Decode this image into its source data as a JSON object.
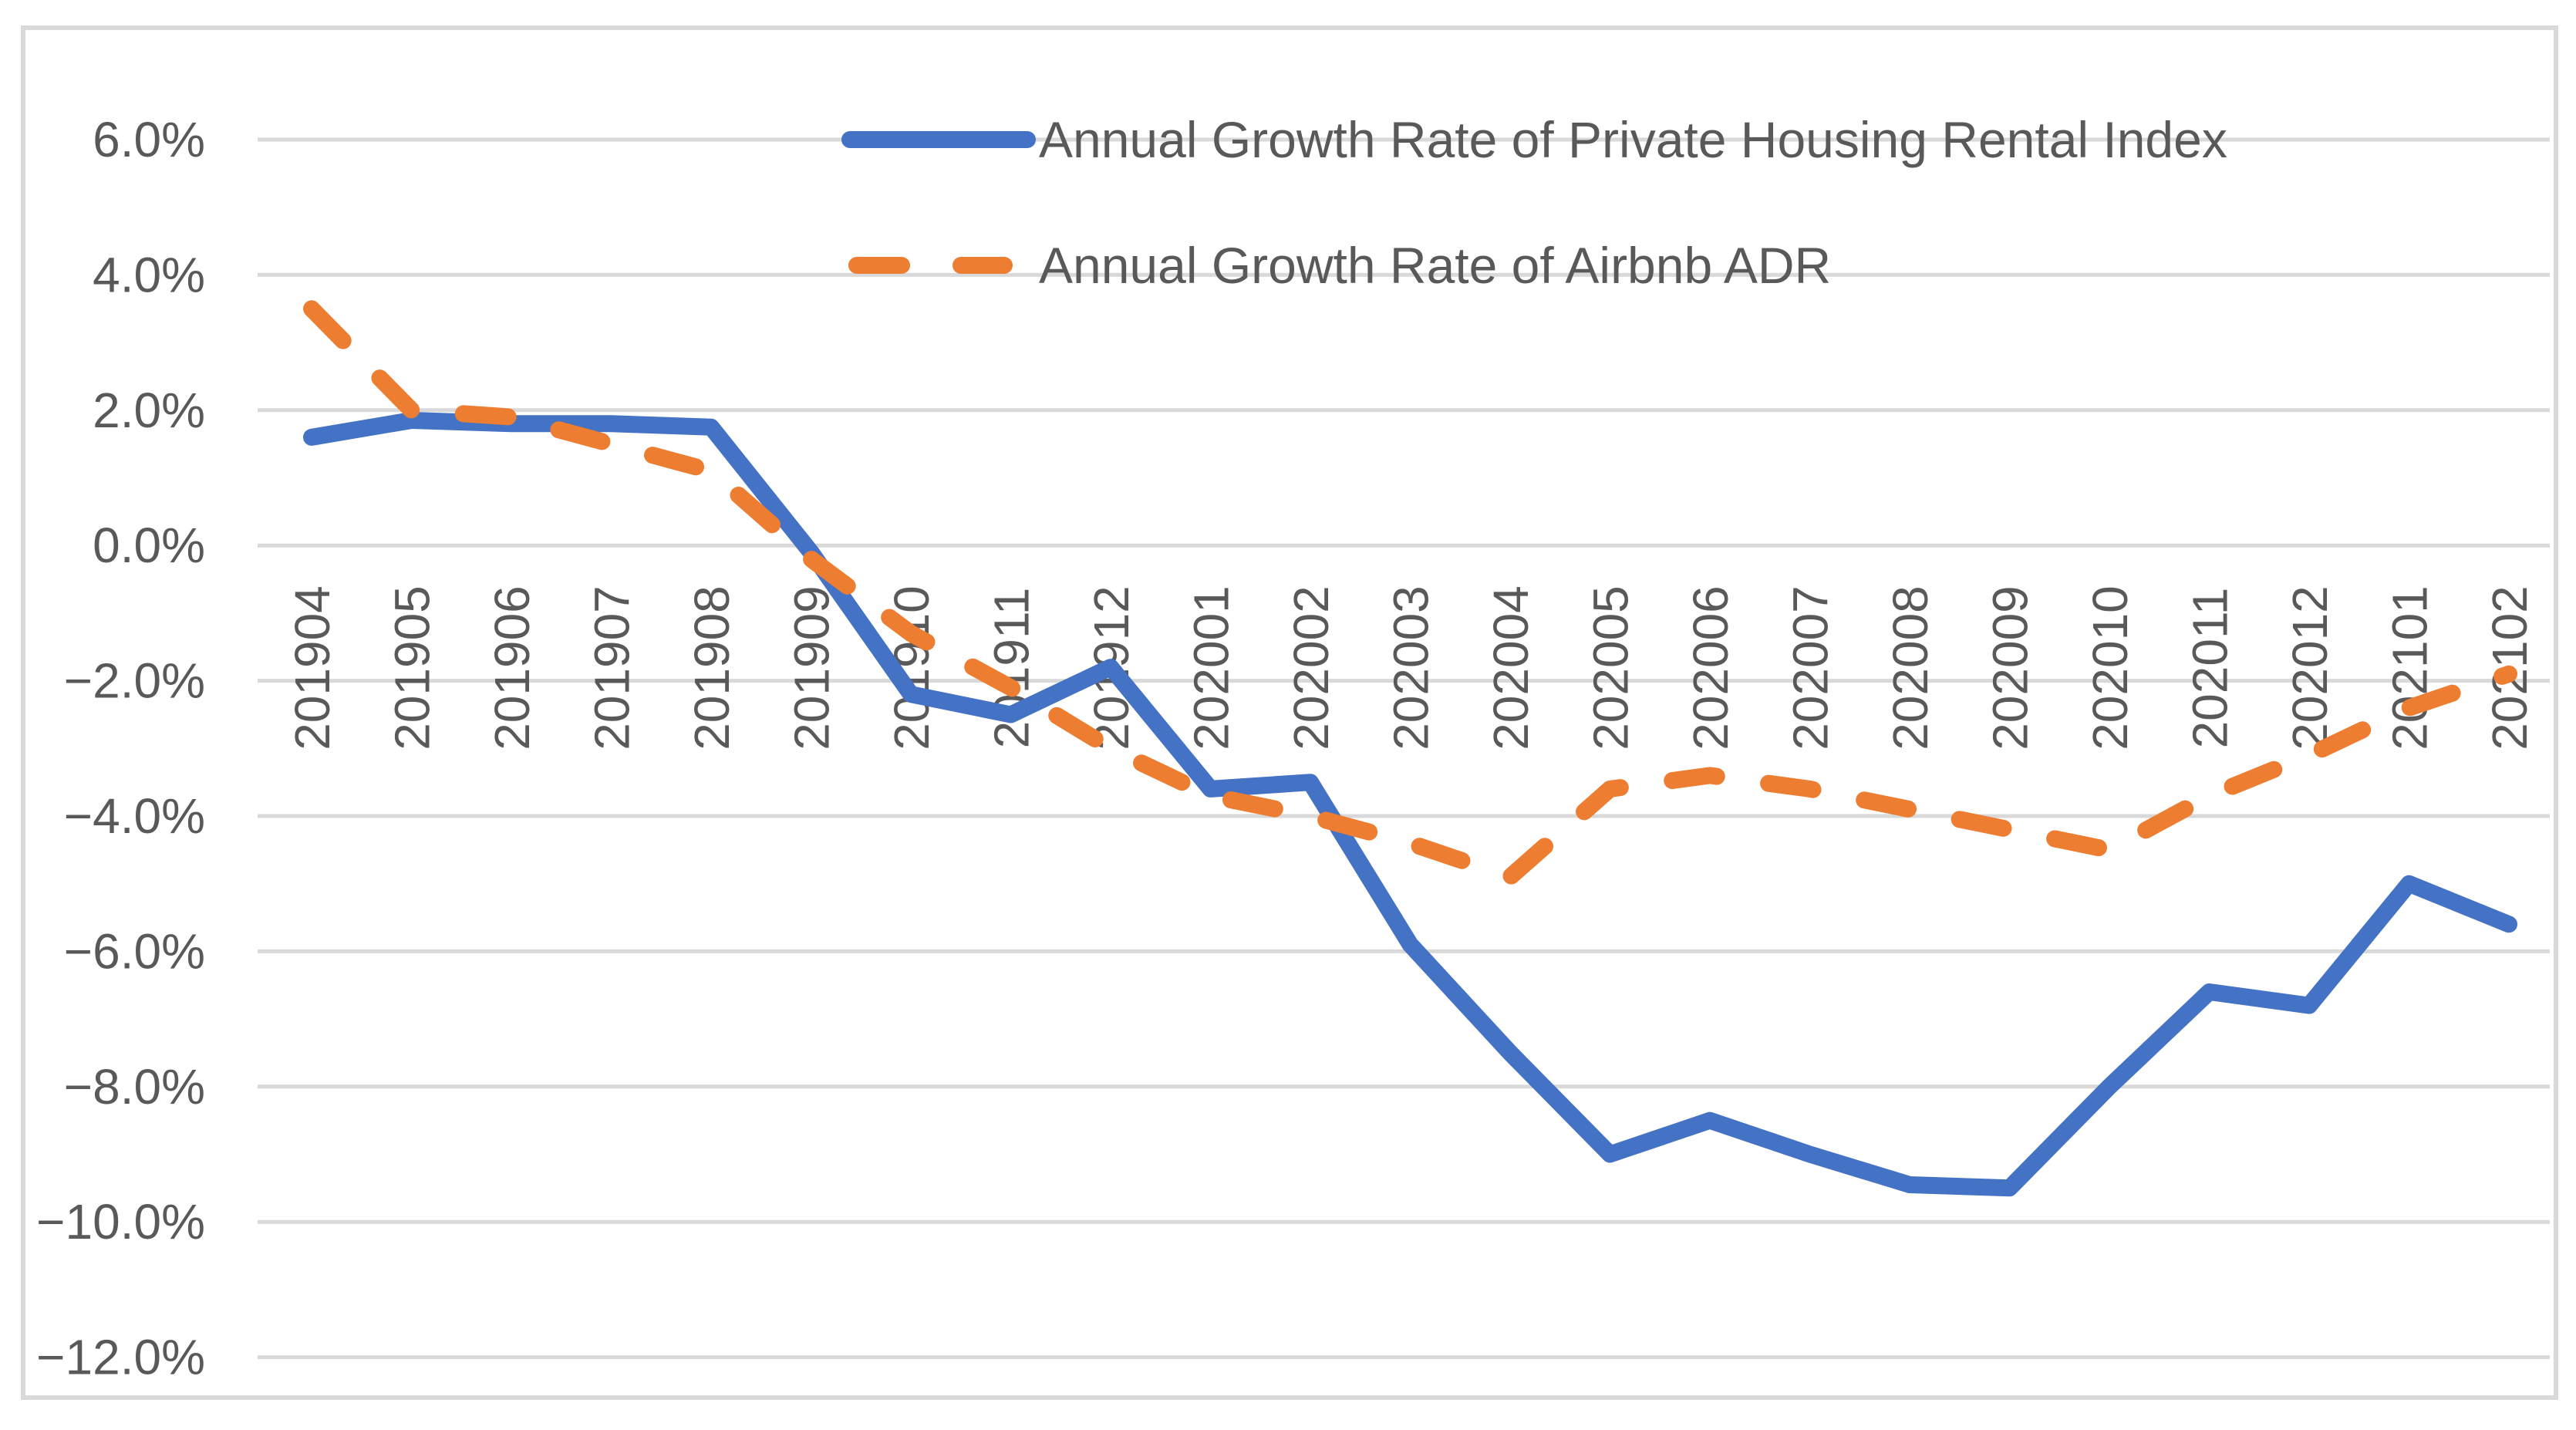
{
  "chart_data": {
    "type": "line",
    "title": "",
    "xlabel": "",
    "ylabel": "",
    "categories": [
      "201904",
      "201905",
      "201906",
      "201907",
      "201908",
      "201909",
      "201910",
      "201911",
      "201912",
      "202001",
      "202002",
      "202003",
      "202004",
      "202005",
      "202006",
      "202007",
      "202008",
      "202009",
      "202010",
      "202011",
      "202012",
      "202101",
      "202102"
    ],
    "series": [
      {
        "name": "Annual Growth Rate of Private Housing Rental Index",
        "color": "#4472C4",
        "line_style": "solid",
        "values": [
          1.6,
          1.85,
          1.8,
          1.8,
          1.75,
          -0.1,
          -2.2,
          -2.5,
          -1.8,
          -3.6,
          -3.5,
          -5.9,
          -7.5,
          -9.0,
          -8.5,
          -9.0,
          -9.45,
          -9.5,
          -8.0,
          -6.6,
          -6.8,
          -5.0,
          -5.6
        ]
      },
      {
        "name": "Annual Growth Rate of Airbnb ADR",
        "color": "#ED7D31",
        "line_style": "dashed",
        "values": [
          3.5,
          2.0,
          1.9,
          1.5,
          1.1,
          -0.2,
          -1.3,
          -2.1,
          -3.0,
          -3.7,
          -4.0,
          -4.4,
          -4.9,
          -3.6,
          -3.4,
          -3.6,
          -3.9,
          -4.2,
          -4.5,
          -3.7,
          -3.1,
          -2.4,
          -1.9
        ]
      }
    ],
    "ylim": [
      -12,
      6
    ],
    "yticks": [
      6,
      4,
      2,
      0,
      -2,
      -4,
      -6,
      -8,
      -10,
      -12
    ],
    "ytick_labels": [
      "6.0%",
      "4.0%",
      "2.0%",
      "0.0%",
      "−2.0%",
      "−4.0%",
      "−6.0%",
      "−8.0%",
      "−10.0%",
      "−12.0%"
    ],
    "grid": true,
    "legend_position": "top-center",
    "x_axis_label_rotation": -90
  },
  "style": {
    "background": "#FFFFFF",
    "border_color": "#D9D9D9",
    "gridline_color": "#D9D9D9",
    "text_color": "#595959"
  }
}
